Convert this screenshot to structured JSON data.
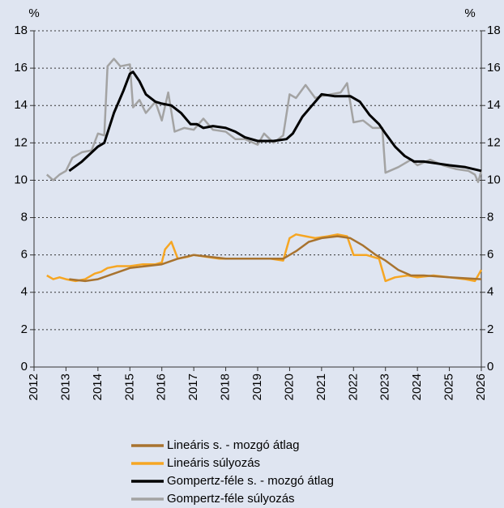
{
  "chart_data": {
    "type": "line",
    "ylabel": "%",
    "y2label": "%",
    "xlim": [
      2012,
      2026
    ],
    "xticks": [
      2012,
      2013,
      2014,
      2015,
      2016,
      2017,
      2018,
      2019,
      2020,
      2021,
      2022,
      2023,
      2024,
      2025,
      2026
    ],
    "ylim": [
      0,
      18
    ],
    "yticks": [
      0,
      2,
      4,
      6,
      8,
      10,
      12,
      14,
      16,
      18
    ],
    "y2lim": [
      0,
      18
    ],
    "y2ticks": [
      0,
      2,
      4,
      6,
      8,
      10,
      12,
      14,
      16,
      18
    ],
    "grid": true,
    "legend": "bottom",
    "series": [
      {
        "name": "Lineáris s. - mozgó átlag",
        "color": "#a8732f",
        "x": [
          2013.1,
          2013.6,
          2014.0,
          2014.5,
          2015.0,
          2015.5,
          2016.0,
          2016.5,
          2017.0,
          2017.5,
          2018.0,
          2019.0,
          2019.8,
          2020.2,
          2020.6,
          2021.0,
          2021.5,
          2021.9,
          2022.3,
          2022.7,
          2023.0,
          2023.4,
          2023.8,
          2024.2,
          2025.0,
          2026.0
        ],
        "values": [
          4.7,
          4.6,
          4.7,
          5.0,
          5.3,
          5.4,
          5.5,
          5.8,
          6.0,
          5.9,
          5.8,
          5.8,
          5.8,
          6.2,
          6.7,
          6.9,
          7.0,
          6.9,
          6.5,
          6.0,
          5.7,
          5.2,
          4.9,
          4.9,
          4.8,
          4.7
        ]
      },
      {
        "name": "Lineáris súlyozás",
        "color": "#f6a623",
        "x": [
          2012.4,
          2012.6,
          2012.8,
          2013.0,
          2013.3,
          2013.6,
          2013.9,
          2014.1,
          2014.3,
          2014.6,
          2015.0,
          2015.4,
          2015.8,
          2016.0,
          2016.1,
          2016.3,
          2016.5,
          2016.8,
          2017.0,
          2017.4,
          2017.8,
          2018.2,
          2018.6,
          2019.0,
          2019.4,
          2019.8,
          2020.0,
          2020.2,
          2020.5,
          2020.8,
          2021.2,
          2021.5,
          2021.8,
          2022.0,
          2022.4,
          2022.8,
          2023.0,
          2023.3,
          2023.7,
          2024.0,
          2024.5,
          2025.0,
          2025.5,
          2025.8,
          2026.0
        ],
        "values": [
          4.9,
          4.7,
          4.8,
          4.7,
          4.6,
          4.7,
          5.0,
          5.1,
          5.3,
          5.4,
          5.4,
          5.5,
          5.5,
          5.6,
          6.3,
          6.7,
          5.8,
          5.9,
          6.0,
          5.9,
          5.8,
          5.8,
          5.8,
          5.8,
          5.8,
          5.7,
          6.9,
          7.1,
          7.0,
          6.9,
          7.0,
          7.1,
          7.0,
          6.0,
          6.0,
          5.8,
          4.6,
          4.8,
          4.9,
          4.8,
          4.9,
          4.8,
          4.7,
          4.6,
          5.2
        ]
      },
      {
        "name": "Gompertz-féle s. - mozgó átlag",
        "color": "#000000",
        "x": [
          2013.1,
          2013.5,
          2014.0,
          2014.2,
          2014.5,
          2014.8,
          2015.0,
          2015.1,
          2015.3,
          2015.5,
          2015.8,
          2016.0,
          2016.3,
          2016.6,
          2016.9,
          2017.1,
          2017.3,
          2017.6,
          2018.0,
          2018.3,
          2018.6,
          2019.0,
          2019.5,
          2019.9,
          2020.1,
          2020.4,
          2020.8,
          2021.0,
          2021.4,
          2021.6,
          2021.9,
          2022.2,
          2022.5,
          2022.8,
          2023.0,
          2023.3,
          2023.6,
          2023.9,
          2024.2,
          2024.6,
          2025.0,
          2025.5,
          2026.0
        ],
        "values": [
          10.5,
          11.0,
          11.8,
          12.0,
          13.6,
          14.8,
          15.7,
          15.8,
          15.3,
          14.6,
          14.2,
          14.1,
          14.0,
          13.6,
          13.0,
          13.0,
          12.8,
          12.9,
          12.8,
          12.6,
          12.3,
          12.1,
          12.1,
          12.2,
          12.5,
          13.4,
          14.2,
          14.6,
          14.5,
          14.5,
          14.5,
          14.2,
          13.5,
          13.0,
          12.5,
          11.8,
          11.3,
          11.0,
          11.0,
          10.9,
          10.8,
          10.7,
          10.5
        ]
      },
      {
        "name": "Gompertz-féle súlyozás",
        "color": "#a3a3a3",
        "x": [
          2012.4,
          2012.6,
          2012.8,
          2013.0,
          2013.2,
          2013.5,
          2013.8,
          2014.0,
          2014.2,
          2014.3,
          2014.5,
          2014.7,
          2015.0,
          2015.1,
          2015.3,
          2015.5,
          2015.8,
          2016.0,
          2016.2,
          2016.4,
          2016.7,
          2017.0,
          2017.3,
          2017.6,
          2018.0,
          2018.3,
          2018.6,
          2019.0,
          2019.2,
          2019.5,
          2019.8,
          2020.0,
          2020.2,
          2020.5,
          2020.8,
          2021.0,
          2021.3,
          2021.6,
          2021.8,
          2022.0,
          2022.3,
          2022.6,
          2022.9,
          2023.0,
          2023.4,
          2023.8,
          2024.0,
          2024.4,
          2024.8,
          2025.2,
          2025.6,
          2025.8,
          2025.9,
          2026.0
        ],
        "values": [
          10.3,
          10.0,
          10.3,
          10.5,
          11.2,
          11.5,
          11.6,
          12.5,
          12.4,
          16.1,
          16.5,
          16.1,
          16.2,
          13.9,
          14.3,
          13.6,
          14.2,
          13.2,
          14.7,
          12.6,
          12.8,
          12.7,
          13.3,
          12.7,
          12.6,
          12.2,
          12.2,
          11.9,
          12.5,
          12.0,
          12.4,
          14.6,
          14.4,
          15.1,
          14.4,
          14.5,
          14.6,
          14.7,
          15.2,
          13.1,
          13.2,
          12.8,
          12.8,
          10.4,
          10.7,
          11.1,
          10.8,
          11.1,
          10.8,
          10.6,
          10.5,
          10.3,
          9.9,
          10.5
        ]
      }
    ]
  }
}
